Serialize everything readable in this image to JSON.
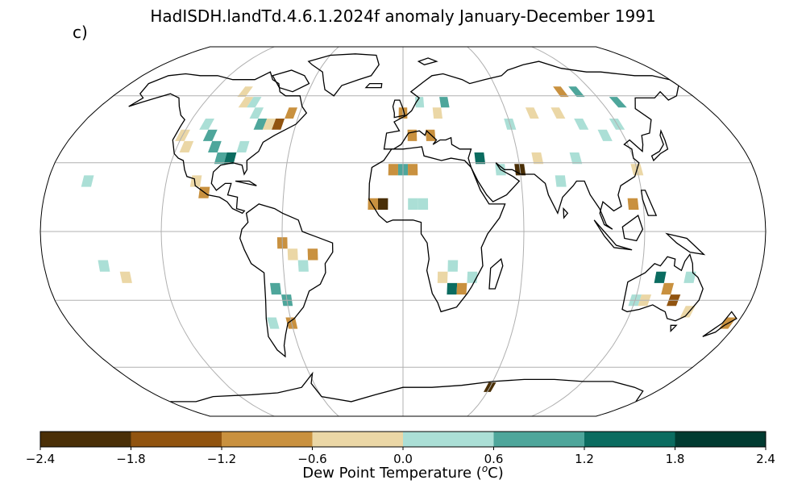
{
  "title": "HadISDH.landTd.4.6.1.2024f anomaly January-December 1991",
  "panel_label": "c)",
  "projection": "Robinson",
  "colorbar": {
    "label_prefix": "Dew Point Temperature (",
    "label_unit_sup": "o",
    "label_suffix": "C)",
    "ticks": [
      "−2.4",
      "−1.8",
      "−1.2",
      "−0.6",
      "0.0",
      "0.6",
      "1.2",
      "1.8",
      "2.4"
    ],
    "tick_values": [
      -2.4,
      -1.8,
      -1.2,
      -0.6,
      0.0,
      0.6,
      1.2,
      1.8,
      2.4
    ],
    "colors": [
      "#4a2f07",
      "#915410",
      "#c9913f",
      "#ebd7a6",
      "#abdfd6",
      "#4ea69b",
      "#0b6c60",
      "#013b31"
    ]
  },
  "anomaly_cells": [
    {
      "lon": -100,
      "lat": 62,
      "v": -1
    },
    {
      "lon": -95,
      "lat": 57,
      "v": -1
    },
    {
      "lon": -90,
      "lat": 57,
      "v": 1
    },
    {
      "lon": -85,
      "lat": 52,
      "v": 1
    },
    {
      "lon": -80,
      "lat": 47,
      "v": 2
    },
    {
      "lon": -75,
      "lat": 47,
      "v": -1
    },
    {
      "lon": -70,
      "lat": 47,
      "v": -3
    },
    {
      "lon": -65,
      "lat": 52,
      "v": -2
    },
    {
      "lon": -110,
      "lat": 47,
      "v": 1
    },
    {
      "lon": -105,
      "lat": 42,
      "v": 2
    },
    {
      "lon": -100,
      "lat": 37,
      "v": 2
    },
    {
      "lon": -95,
      "lat": 32,
      "v": 2
    },
    {
      "lon": -90,
      "lat": 32,
      "v": 3
    },
    {
      "lon": -85,
      "lat": 37,
      "v": 1
    },
    {
      "lon": -120,
      "lat": 42,
      "v": -1
    },
    {
      "lon": -115,
      "lat": 37,
      "v": -1
    },
    {
      "lon": -105,
      "lat": 22,
      "v": -1
    },
    {
      "lon": -100,
      "lat": 17,
      "v": -2
    },
    {
      "lon": -60,
      "lat": -5,
      "v": -2
    },
    {
      "lon": -55,
      "lat": -10,
      "v": -1
    },
    {
      "lon": -50,
      "lat": -15,
      "v": 1
    },
    {
      "lon": -45,
      "lat": -10,
      "v": -2
    },
    {
      "lon": -65,
      "lat": -25,
      "v": 2
    },
    {
      "lon": -60,
      "lat": -30,
      "v": 2
    },
    {
      "lon": -70,
      "lat": -40,
      "v": 1
    },
    {
      "lon": -60,
      "lat": -40,
      "v": -2
    },
    {
      "lon": 0,
      "lat": 52,
      "v": -2
    },
    {
      "lon": 10,
      "lat": 57,
      "v": 1
    },
    {
      "lon": 20,
      "lat": 52,
      "v": -1
    },
    {
      "lon": 25,
      "lat": 57,
      "v": 2
    },
    {
      "lon": 5,
      "lat": 42,
      "v": -2
    },
    {
      "lon": 15,
      "lat": 42,
      "v": -2
    },
    {
      "lon": -5,
      "lat": 27,
      "v": -2
    },
    {
      "lon": 0,
      "lat": 27,
      "v": 2
    },
    {
      "lon": 5,
      "lat": 27,
      "v": -2
    },
    {
      "lon": -10,
      "lat": 12,
      "v": -4
    },
    {
      "lon": -15,
      "lat": 12,
      "v": -2
    },
    {
      "lon": 5,
      "lat": 12,
      "v": 1
    },
    {
      "lon": 10,
      "lat": 12,
      "v": 1
    },
    {
      "lon": 40,
      "lat": 32,
      "v": 3
    },
    {
      "lon": 50,
      "lat": 27,
      "v": 1
    },
    {
      "lon": 60,
      "lat": 27,
      "v": -4
    },
    {
      "lon": 70,
      "lat": 32,
      "v": -1
    },
    {
      "lon": 80,
      "lat": 22,
      "v": 1
    },
    {
      "lon": 90,
      "lat": 32,
      "v": 1
    },
    {
      "lon": 60,
      "lat": 47,
      "v": 1
    },
    {
      "lon": 75,
      "lat": 52,
      "v": -1
    },
    {
      "lon": 90,
      "lat": 52,
      "v": -1
    },
    {
      "lon": 100,
      "lat": 47,
      "v": 1
    },
    {
      "lon": 110,
      "lat": 42,
      "v": 1
    },
    {
      "lon": 120,
      "lat": 47,
      "v": 1
    },
    {
      "lon": 130,
      "lat": 57,
      "v": 2
    },
    {
      "lon": 100,
      "lat": 62,
      "v": -2
    },
    {
      "lon": 110,
      "lat": 62,
      "v": 2
    },
    {
      "lon": 120,
      "lat": 27,
      "v": -1
    },
    {
      "lon": 115,
      "lat": 12,
      "v": -2
    },
    {
      "lon": 25,
      "lat": -15,
      "v": 1
    },
    {
      "lon": 20,
      "lat": -20,
      "v": -1
    },
    {
      "lon": 25,
      "lat": -25,
      "v": 3
    },
    {
      "lon": 30,
      "lat": -25,
      "v": -2
    },
    {
      "lon": 35,
      "lat": -20,
      "v": 1
    },
    {
      "lon": 130,
      "lat": -20,
      "v": 3
    },
    {
      "lon": 135,
      "lat": -25,
      "v": -2
    },
    {
      "lon": 140,
      "lat": -30,
      "v": -3
    },
    {
      "lon": 125,
      "lat": -30,
      "v": -1
    },
    {
      "lon": 145,
      "lat": -20,
      "v": 1
    },
    {
      "lon": 150,
      "lat": -35,
      "v": -1
    },
    {
      "lon": 120,
      "lat": -30,
      "v": 1
    },
    {
      "lon": 175,
      "lat": -40,
      "v": -2
    },
    {
      "lon": -160,
      "lat": 22,
      "v": 1
    },
    {
      "lon": -150,
      "lat": -15,
      "v": 1
    },
    {
      "lon": -140,
      "lat": -20,
      "v": -1
    },
    {
      "lon": 60,
      "lat": -70,
      "v": -4
    }
  ]
}
